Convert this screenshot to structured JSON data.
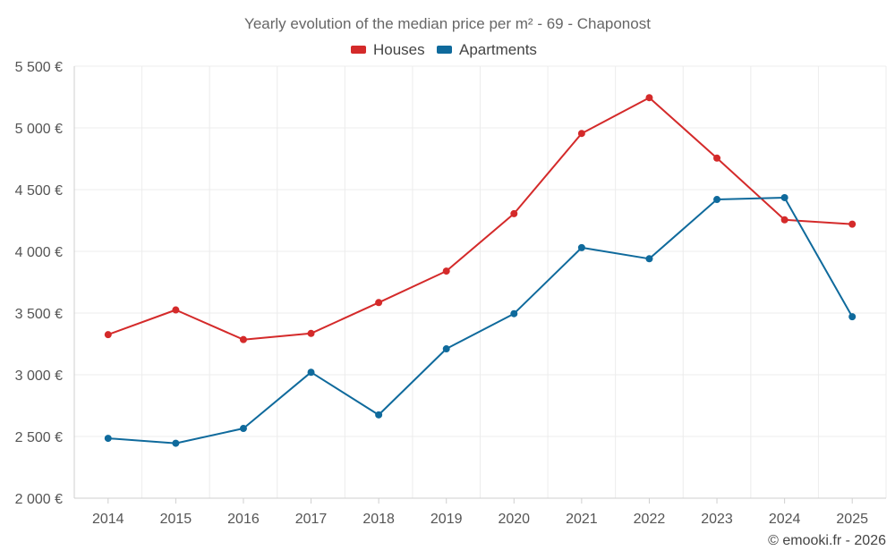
{
  "chart_data": {
    "type": "line",
    "title": "Yearly evolution of the median price per m² - 69 - Chaponost",
    "categories": [
      "2014",
      "2015",
      "2016",
      "2017",
      "2018",
      "2019",
      "2020",
      "2021",
      "2022",
      "2023",
      "2024",
      "2025"
    ],
    "series": [
      {
        "name": "Houses",
        "color": "#d42a2a",
        "values": [
          3325,
          3525,
          3285,
          3335,
          3585,
          3840,
          4305,
          4955,
          5245,
          4755,
          4255,
          4220
        ]
      },
      {
        "name": "Apartments",
        "color": "#0f6a9c",
        "values": [
          2485,
          2445,
          2565,
          3020,
          2675,
          3210,
          3495,
          4030,
          3940,
          4420,
          4435,
          3470
        ]
      }
    ],
    "ylim": [
      2000,
      5500
    ],
    "yticks": [
      2000,
      2500,
      3000,
      3500,
      4000,
      4500,
      5000,
      5500
    ],
    "ytick_labels": [
      "2 000 €",
      "2 500 €",
      "3 000 €",
      "3 500 €",
      "4 000 €",
      "4 500 €",
      "5 000 €",
      "5 500 €"
    ],
    "xlabel": "",
    "ylabel": "",
    "legend_position": "top-center",
    "grid": true
  },
  "credit": "© emooki.fr - 2026"
}
